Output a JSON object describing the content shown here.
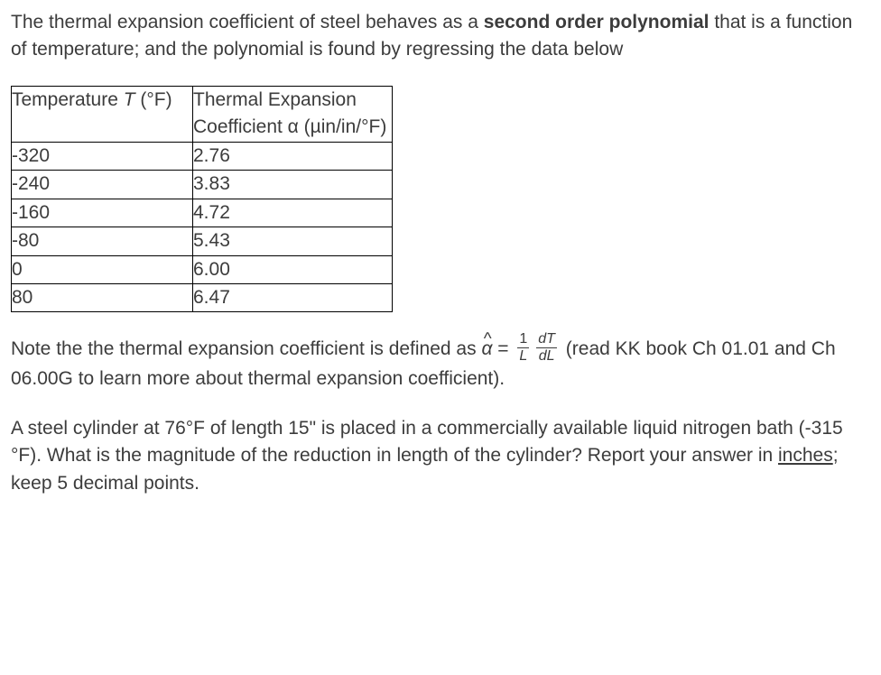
{
  "para1_pre": "The thermal expansion coefficient of steel behaves as a ",
  "para1_bold": "second order polynomial",
  "para1_post": " that is a function of temperature; and the polynomial is found by regressing the data below",
  "table": {
    "columns": [
      {
        "line1": "Temperature ",
        "unit": " (°F)",
        "symbol": "T"
      },
      {
        "line1": "Thermal Expansion Coefficient α (µin/in/°F)"
      }
    ],
    "rows": [
      [
        "-320",
        "2.76"
      ],
      [
        "-240",
        "3.83"
      ],
      [
        "-160",
        "4.72"
      ],
      [
        "-80",
        "5.43"
      ],
      [
        "0",
        "6.00"
      ],
      [
        "80",
        "6.47"
      ]
    ]
  },
  "note_pre": "Note the the thermal expansion coefficient is defined as ",
  "note_alpha": "α",
  "note_eq": " = ",
  "frac1_num": "1",
  "frac1_den": "L",
  "frac2_num": "dT",
  "frac2_den": "dL",
  "note_post1": " (read KK book Ch 01.01 and Ch 06.00G to learn more about thermal expansion coefficient).",
  "question_pre": "A steel cylinder at 76°F of length 15\" is placed in a commercially available liquid nitrogen bath (-315 °F). What is the magnitude of the reduction in length of the cylinder? Report your answer in ",
  "question_underline": "inches",
  "question_post": "; keep 5 decimal points."
}
